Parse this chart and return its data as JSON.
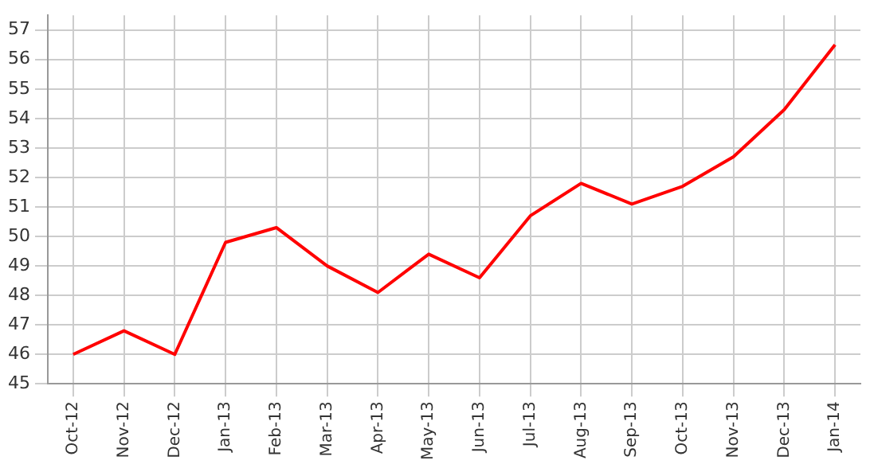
{
  "chart_data": {
    "type": "line",
    "categories": [
      "Oct-12",
      "Nov-12",
      "Dec-12",
      "Jan-13",
      "Feb-13",
      "Mar-13",
      "Apr-13",
      "May-13",
      "Jun-13",
      "Jul-13",
      "Aug-13",
      "Sep-13",
      "Oct-13",
      "Nov-13",
      "Dec-13",
      "Jan-14"
    ],
    "series": [
      {
        "color": "#ff0000",
        "values": [
          46.0,
          46.8,
          46.0,
          49.8,
          50.3,
          49.0,
          48.1,
          49.4,
          48.6,
          50.7,
          51.8,
          51.1,
          51.7,
          52.7,
          54.3,
          56.5
        ]
      }
    ],
    "ylim": [
      45,
      57.5
    ],
    "yticks": [
      45,
      46,
      47,
      48,
      49,
      50,
      51,
      52,
      53,
      54,
      55,
      56,
      57
    ],
    "grid": true,
    "marker": "none",
    "line_style": "solid",
    "legend": false
  }
}
